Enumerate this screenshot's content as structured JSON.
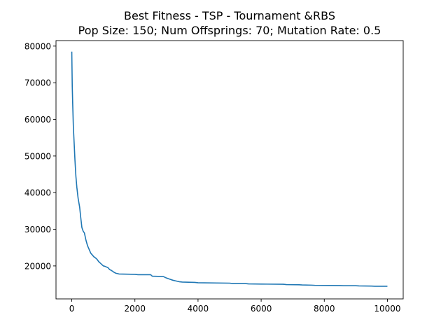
{
  "chart_data": {
    "type": "line",
    "title_line1": "Best Fitness - TSP - Tournament &RBS",
    "title_line2": "Pop Size: 150; Num Offsprings: 70; Mutation Rate: 0.5",
    "xlabel": "",
    "ylabel": "",
    "xlim": [
      -500,
      10500
    ],
    "ylim": [
      11000,
      81500
    ],
    "x_ticks": [
      0,
      2000,
      4000,
      6000,
      8000,
      10000
    ],
    "y_ticks": [
      20000,
      30000,
      40000,
      50000,
      60000,
      70000,
      80000
    ],
    "grid": false,
    "line_color": "#1f77b4",
    "series": [
      {
        "x": [
          0,
          15,
          30,
          50,
          75,
          100,
          130,
          160,
          200,
          250,
          280,
          320,
          360,
          400,
          450,
          500,
          550,
          600,
          650,
          700,
          750,
          800,
          850,
          900,
          950,
          1000,
          1050,
          1100,
          1150,
          1200,
          1250,
          1300,
          1350,
          1400,
          1450,
          1500,
          2000,
          2100,
          2500,
          2550,
          2900,
          3000,
          3100,
          3200,
          3300,
          3400,
          3500,
          3900,
          4000,
          5000,
          5100,
          5500,
          5600,
          6000,
          6700,
          6800,
          7200,
          7300,
          7600,
          7700,
          8500,
          8600,
          9000,
          9100,
          9500,
          9600,
          10000
        ],
        "y": [
          78500,
          69000,
          64000,
          58000,
          53500,
          49000,
          44500,
          41500,
          38500,
          36000,
          33500,
          30500,
          29500,
          29000,
          27000,
          25500,
          24500,
          23500,
          23000,
          22500,
          22200,
          21800,
          21200,
          20800,
          20400,
          20000,
          19900,
          19700,
          19500,
          19000,
          18800,
          18500,
          18200,
          18000,
          17900,
          17800,
          17700,
          17600,
          17600,
          17200,
          17100,
          16700,
          16400,
          16100,
          15900,
          15700,
          15600,
          15500,
          15400,
          15300,
          15200,
          15200,
          15100,
          15050,
          15000,
          14900,
          14850,
          14800,
          14750,
          14700,
          14650,
          14600,
          14600,
          14550,
          14500,
          14450,
          14450
        ]
      }
    ]
  }
}
